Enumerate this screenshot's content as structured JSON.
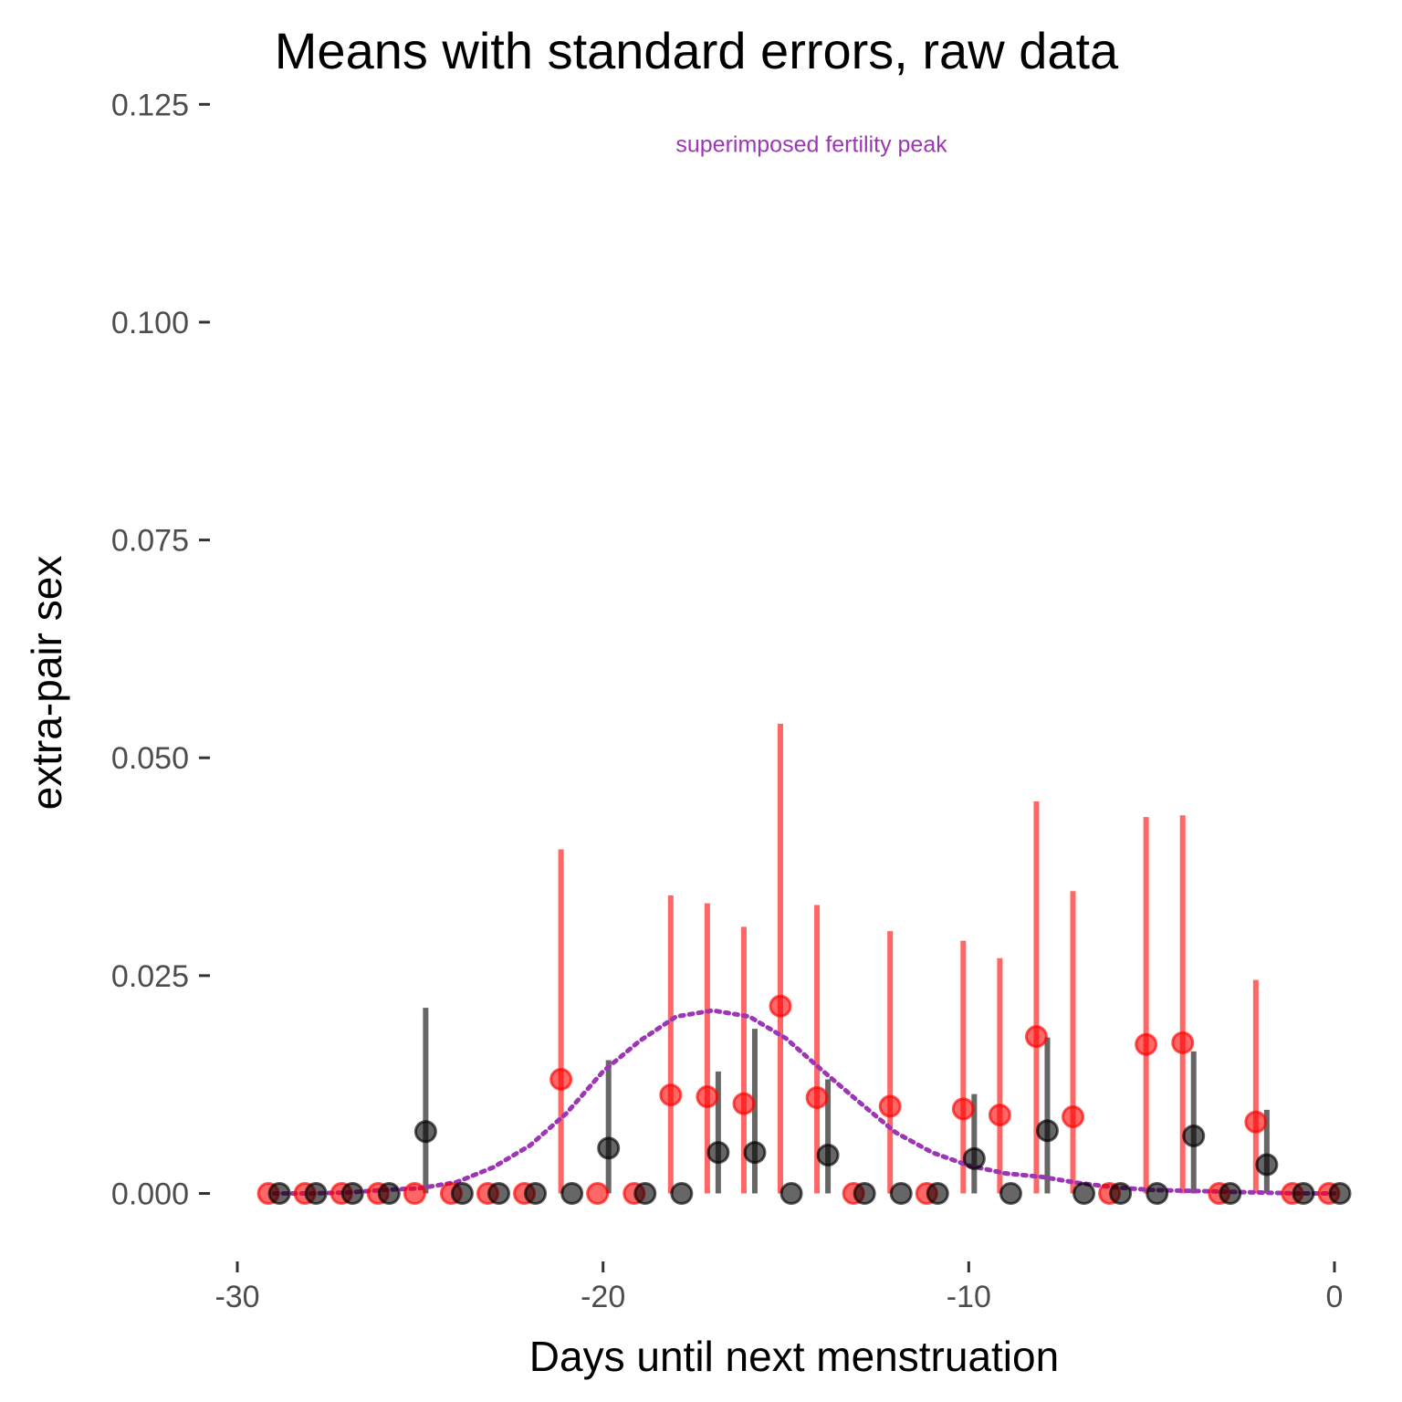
{
  "chart_data": {
    "type": "scatter",
    "title": "Means with standard errors, raw data",
    "xlabel": "Days until next menstruation",
    "ylabel": "extra-pair sex",
    "xlim": [
      -30.5,
      0.2
    ],
    "ylim": [
      -0.0055,
      0.1265
    ],
    "x_ticks": [
      -30,
      -20,
      -10,
      0
    ],
    "x_tick_labels": [
      "-30",
      "-20",
      "-10",
      "0"
    ],
    "y_ticks": [
      0,
      0.025,
      0.05,
      0.075,
      0.1,
      0.125
    ],
    "y_tick_labels": [
      "0.000",
      "0.025",
      "0.050",
      "0.075",
      "0.100",
      "0.125"
    ],
    "grid": false,
    "legend": "none",
    "annotation": {
      "text": "superimposed fertility peak",
      "x": -14.3,
      "y": 0.1205,
      "color": "#9c36b5"
    },
    "series": [
      {
        "color": "#ff0000",
        "points": [
          {
            "x": -29,
            "y": 0,
            "lo": 0,
            "hi": 0
          },
          {
            "x": -28,
            "y": 0,
            "lo": 0,
            "hi": 0
          },
          {
            "x": -27,
            "y": 0,
            "lo": 0,
            "hi": 0
          },
          {
            "x": -26,
            "y": 0,
            "lo": 0,
            "hi": 0
          },
          {
            "x": -25,
            "y": 0,
            "lo": 0,
            "hi": 0
          },
          {
            "x": -24,
            "y": 0,
            "lo": 0,
            "hi": 0
          },
          {
            "x": -23,
            "y": 0,
            "lo": 0,
            "hi": 0
          },
          {
            "x": -22,
            "y": 0,
            "lo": 0,
            "hi": 0
          },
          {
            "x": -21,
            "y": 0.0131,
            "lo": 0,
            "hi": 0.0395
          },
          {
            "x": -20,
            "y": 0,
            "lo": 0,
            "hi": 0
          },
          {
            "x": -19,
            "y": 0,
            "lo": 0,
            "hi": 0
          },
          {
            "x": -18,
            "y": 0.0113,
            "lo": 0,
            "hi": 0.0342
          },
          {
            "x": -17,
            "y": 0.0111,
            "lo": 0,
            "hi": 0.0333
          },
          {
            "x": -16,
            "y": 0.0103,
            "lo": 0,
            "hi": 0.0306
          },
          {
            "x": -15,
            "y": 0.0215,
            "lo": 0,
            "hi": 0.0539
          },
          {
            "x": -14,
            "y": 0.011,
            "lo": 0,
            "hi": 0.0331
          },
          {
            "x": -13,
            "y": 0,
            "lo": 0,
            "hi": 0
          },
          {
            "x": -12,
            "y": 0.01,
            "lo": 0,
            "hi": 0.0301
          },
          {
            "x": -11,
            "y": 0,
            "lo": 0,
            "hi": 0
          },
          {
            "x": -10,
            "y": 0.0097,
            "lo": 0,
            "hi": 0.029
          },
          {
            "x": -9,
            "y": 0.009,
            "lo": 0,
            "hi": 0.027
          },
          {
            "x": -8,
            "y": 0.018,
            "lo": 0,
            "hi": 0.045
          },
          {
            "x": -7,
            "y": 0.0088,
            "lo": 0,
            "hi": 0.0347
          },
          {
            "x": -6,
            "y": 0,
            "lo": 0,
            "hi": 0
          },
          {
            "x": -5,
            "y": 0.0171,
            "lo": 0,
            "hi": 0.0432
          },
          {
            "x": -4,
            "y": 0.0173,
            "lo": 0,
            "hi": 0.0434
          },
          {
            "x": -3,
            "y": 0,
            "lo": 0,
            "hi": 0
          },
          {
            "x": -2,
            "y": 0.0082,
            "lo": 0,
            "hi": 0.0245
          },
          {
            "x": -1,
            "y": 0,
            "lo": 0,
            "hi": 0
          },
          {
            "x": 0,
            "y": 0,
            "lo": 0,
            "hi": 0
          }
        ]
      },
      {
        "color": "#000000",
        "points": [
          {
            "x": -29,
            "y": 0,
            "lo": 0,
            "hi": 0
          },
          {
            "x": -28,
            "y": 0,
            "lo": 0,
            "hi": 0
          },
          {
            "x": -27,
            "y": 0,
            "lo": 0,
            "hi": 0
          },
          {
            "x": -26,
            "y": 0,
            "lo": 0,
            "hi": 0
          },
          {
            "x": -25,
            "y": 0.0071,
            "lo": 0,
            "hi": 0.0213
          },
          {
            "x": -24,
            "y": 0,
            "lo": 0,
            "hi": 0
          },
          {
            "x": -23,
            "y": 0,
            "lo": 0,
            "hi": 0
          },
          {
            "x": -22,
            "y": 0,
            "lo": 0,
            "hi": 0
          },
          {
            "x": -21,
            "y": 0,
            "lo": 0,
            "hi": 0
          },
          {
            "x": -20,
            "y": 0.0052,
            "lo": 0,
            "hi": 0.0153
          },
          {
            "x": -19,
            "y": 0,
            "lo": 0,
            "hi": 0
          },
          {
            "x": -18,
            "y": 0,
            "lo": 0,
            "hi": 0
          },
          {
            "x": -17,
            "y": 0.0047,
            "lo": 0,
            "hi": 0.014
          },
          {
            "x": -16,
            "y": 0.0047,
            "lo": 0,
            "hi": 0.0189
          },
          {
            "x": -15,
            "y": 0,
            "lo": 0,
            "hi": 0
          },
          {
            "x": -14,
            "y": 0.0044,
            "lo": 0,
            "hi": 0.0131
          },
          {
            "x": -13,
            "y": 0,
            "lo": 0,
            "hi": 0
          },
          {
            "x": -12,
            "y": 0,
            "lo": 0,
            "hi": 0
          },
          {
            "x": -11,
            "y": 0,
            "lo": 0,
            "hi": 0
          },
          {
            "x": -10,
            "y": 0.004,
            "lo": 0,
            "hi": 0.0114
          },
          {
            "x": -9,
            "y": 0,
            "lo": 0,
            "hi": 0
          },
          {
            "x": -8,
            "y": 0.0072,
            "lo": 0,
            "hi": 0.0179
          },
          {
            "x": -7,
            "y": 0,
            "lo": 0,
            "hi": 0
          },
          {
            "x": -6,
            "y": 0,
            "lo": 0,
            "hi": 0
          },
          {
            "x": -5,
            "y": 0,
            "lo": 0,
            "hi": 0
          },
          {
            "x": -4,
            "y": 0.0066,
            "lo": 0,
            "hi": 0.0163
          },
          {
            "x": -3,
            "y": 0,
            "lo": 0,
            "hi": 0
          },
          {
            "x": -2,
            "y": 0.0033,
            "lo": 0,
            "hi": 0.0096
          },
          {
            "x": -1,
            "y": 0,
            "lo": 0,
            "hi": 0
          },
          {
            "x": 0,
            "y": 0,
            "lo": 0,
            "hi": 0
          }
        ]
      }
    ],
    "fertility_curve": {
      "color": "#9c36b5",
      "style": "dotted",
      "points": [
        {
          "x": -29,
          "y": 0
        },
        {
          "x": -28,
          "y": 0
        },
        {
          "x": -27,
          "y": 0.0001
        },
        {
          "x": -26,
          "y": 0.0004
        },
        {
          "x": -25,
          "y": 0.0006
        },
        {
          "x": -24,
          "y": 0.0013
        },
        {
          "x": -23,
          "y": 0.003
        },
        {
          "x": -22,
          "y": 0.0055
        },
        {
          "x": -21,
          "y": 0.0092
        },
        {
          "x": -20,
          "y": 0.014
        },
        {
          "x": -19,
          "y": 0.0175
        },
        {
          "x": -18,
          "y": 0.0203
        },
        {
          "x": -17,
          "y": 0.021
        },
        {
          "x": -16,
          "y": 0.0203
        },
        {
          "x": -15,
          "y": 0.0178
        },
        {
          "x": -14,
          "y": 0.0141
        },
        {
          "x": -13,
          "y": 0.0105
        },
        {
          "x": -12,
          "y": 0.007
        },
        {
          "x": -11,
          "y": 0.0047
        },
        {
          "x": -10,
          "y": 0.0032
        },
        {
          "x": -9,
          "y": 0.0023
        },
        {
          "x": -8,
          "y": 0.0019
        },
        {
          "x": -7,
          "y": 0.0012
        },
        {
          "x": -6,
          "y": 0.0007
        },
        {
          "x": -5,
          "y": 0.0004
        },
        {
          "x": -4,
          "y": 0.0003
        },
        {
          "x": -3,
          "y": 0.0002
        },
        {
          "x": -2,
          "y": 0.0001
        },
        {
          "x": -1,
          "y": 0
        },
        {
          "x": 0,
          "y": 0
        }
      ]
    }
  }
}
